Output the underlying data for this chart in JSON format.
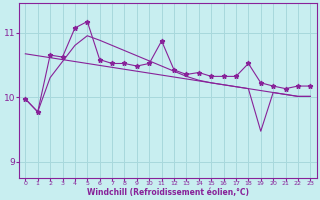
{
  "xlabel": "Windchill (Refroidissement éolien,°C)",
  "bg_color": "#c8eef0",
  "grid_color": "#a8d8dc",
  "line_color": "#882299",
  "xlim": [
    -0.5,
    23.5
  ],
  "ylim": [
    8.75,
    11.45
  ],
  "xticks": [
    0,
    1,
    2,
    3,
    4,
    5,
    6,
    7,
    8,
    9,
    10,
    11,
    12,
    13,
    14,
    15,
    16,
    17,
    18,
    19,
    20,
    21,
    22,
    23
  ],
  "yticks": [
    9,
    10,
    11
  ],
  "series1_x": [
    0,
    1,
    2,
    3,
    4,
    5,
    6,
    7,
    8,
    9,
    10,
    11,
    12,
    13,
    14,
    15,
    16,
    17,
    18,
    19,
    20,
    21,
    22,
    23
  ],
  "series1_y": [
    9.97,
    9.77,
    10.65,
    10.62,
    11.07,
    11.17,
    10.58,
    10.52,
    10.52,
    10.48,
    10.52,
    10.87,
    10.42,
    10.35,
    10.38,
    10.32,
    10.32,
    10.32,
    10.52,
    10.22,
    10.17,
    10.13,
    10.17,
    10.17
  ],
  "series2_x": [
    0,
    1,
    2,
    3,
    4,
    5,
    6,
    7,
    8,
    9,
    10,
    11,
    12,
    13,
    14,
    15,
    16,
    17,
    18,
    19,
    20,
    21,
    22,
    23
  ],
  "series2_y": [
    10.67,
    10.64,
    10.61,
    10.58,
    10.55,
    10.52,
    10.49,
    10.46,
    10.43,
    10.4,
    10.37,
    10.34,
    10.31,
    10.28,
    10.25,
    10.22,
    10.19,
    10.16,
    10.13,
    10.1,
    10.07,
    10.04,
    10.01,
    10.01
  ],
  "series3_x": [
    0,
    1,
    2,
    3,
    4,
    5,
    6,
    7,
    8,
    9,
    10,
    11,
    12,
    13,
    14,
    15,
    16,
    17,
    18,
    19,
    20,
    21,
    22,
    23
  ],
  "series3_y": [
    9.97,
    9.77,
    10.3,
    10.55,
    10.8,
    10.95,
    10.88,
    10.8,
    10.72,
    10.64,
    10.56,
    10.48,
    10.4,
    10.32,
    10.26,
    10.22,
    10.19,
    10.16,
    10.13,
    9.47,
    10.07,
    10.04,
    10.01,
    10.01
  ]
}
